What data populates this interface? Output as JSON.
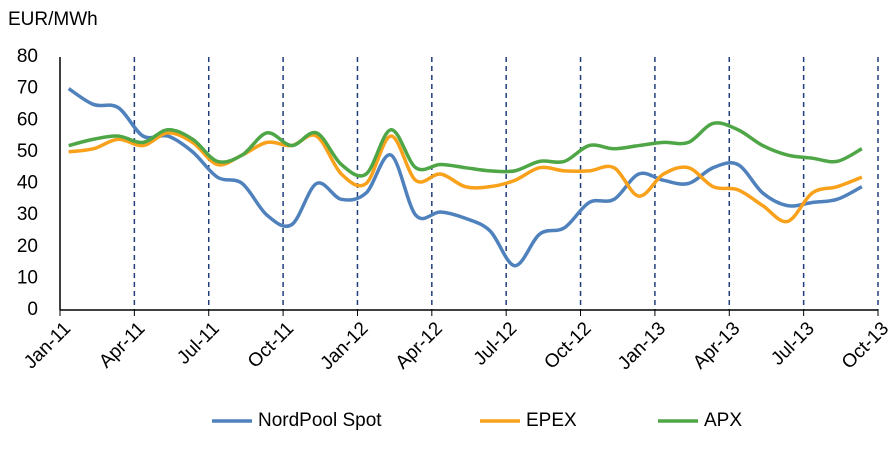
{
  "chart_data": {
    "type": "line",
    "y_label": "EUR/MWh",
    "categories": [
      "Jan-11",
      null,
      null,
      "Apr-11",
      null,
      null,
      "Jul-11",
      null,
      null,
      "Oct-11",
      null,
      null,
      "Jan-12",
      null,
      null,
      "Apr-12",
      null,
      null,
      "Jul-12",
      null,
      null,
      "Oct-12",
      null,
      null,
      "Jan-13",
      null,
      null,
      "Apr-13",
      null,
      null,
      "Jul-13",
      null,
      null,
      "Oct-13"
    ],
    "series": [
      {
        "name": "NordPool Spot",
        "color": "#4f81bd",
        "values": [
          70,
          65,
          64,
          55,
          55,
          50,
          42,
          40,
          30,
          27,
          40,
          35,
          37,
          49,
          30,
          31,
          29,
          25,
          14,
          24,
          26,
          34,
          35,
          43,
          41,
          40,
          45,
          46,
          37,
          33,
          34,
          35,
          39,
          null
        ]
      },
      {
        "name": "EPEX",
        "color": "#f9a11b",
        "values": [
          50,
          51,
          54,
          52,
          56,
          53,
          46,
          49,
          53,
          52,
          55,
          43,
          40,
          55,
          41,
          43,
          39,
          39,
          41,
          45,
          44,
          44,
          45,
          36,
          43,
          45,
          39,
          38,
          33,
          28,
          37,
          39,
          42,
          null
        ]
      },
      {
        "name": "APX",
        "color": "#4ea646",
        "values": [
          52,
          54,
          55,
          53,
          57,
          54,
          47,
          49,
          56,
          52,
          56,
          46,
          43,
          57,
          45,
          46,
          45,
          44,
          44,
          47,
          47,
          52,
          51,
          52,
          53,
          53,
          59,
          57,
          52,
          49,
          48,
          47,
          51,
          null
        ]
      }
    ],
    "ylim": [
      0,
      80
    ],
    "yticks": [
      0,
      10,
      20,
      30,
      40,
      50,
      60,
      70,
      80
    ],
    "grid": "x",
    "grid_color": "#1f3d7a",
    "legend": "bottom"
  }
}
